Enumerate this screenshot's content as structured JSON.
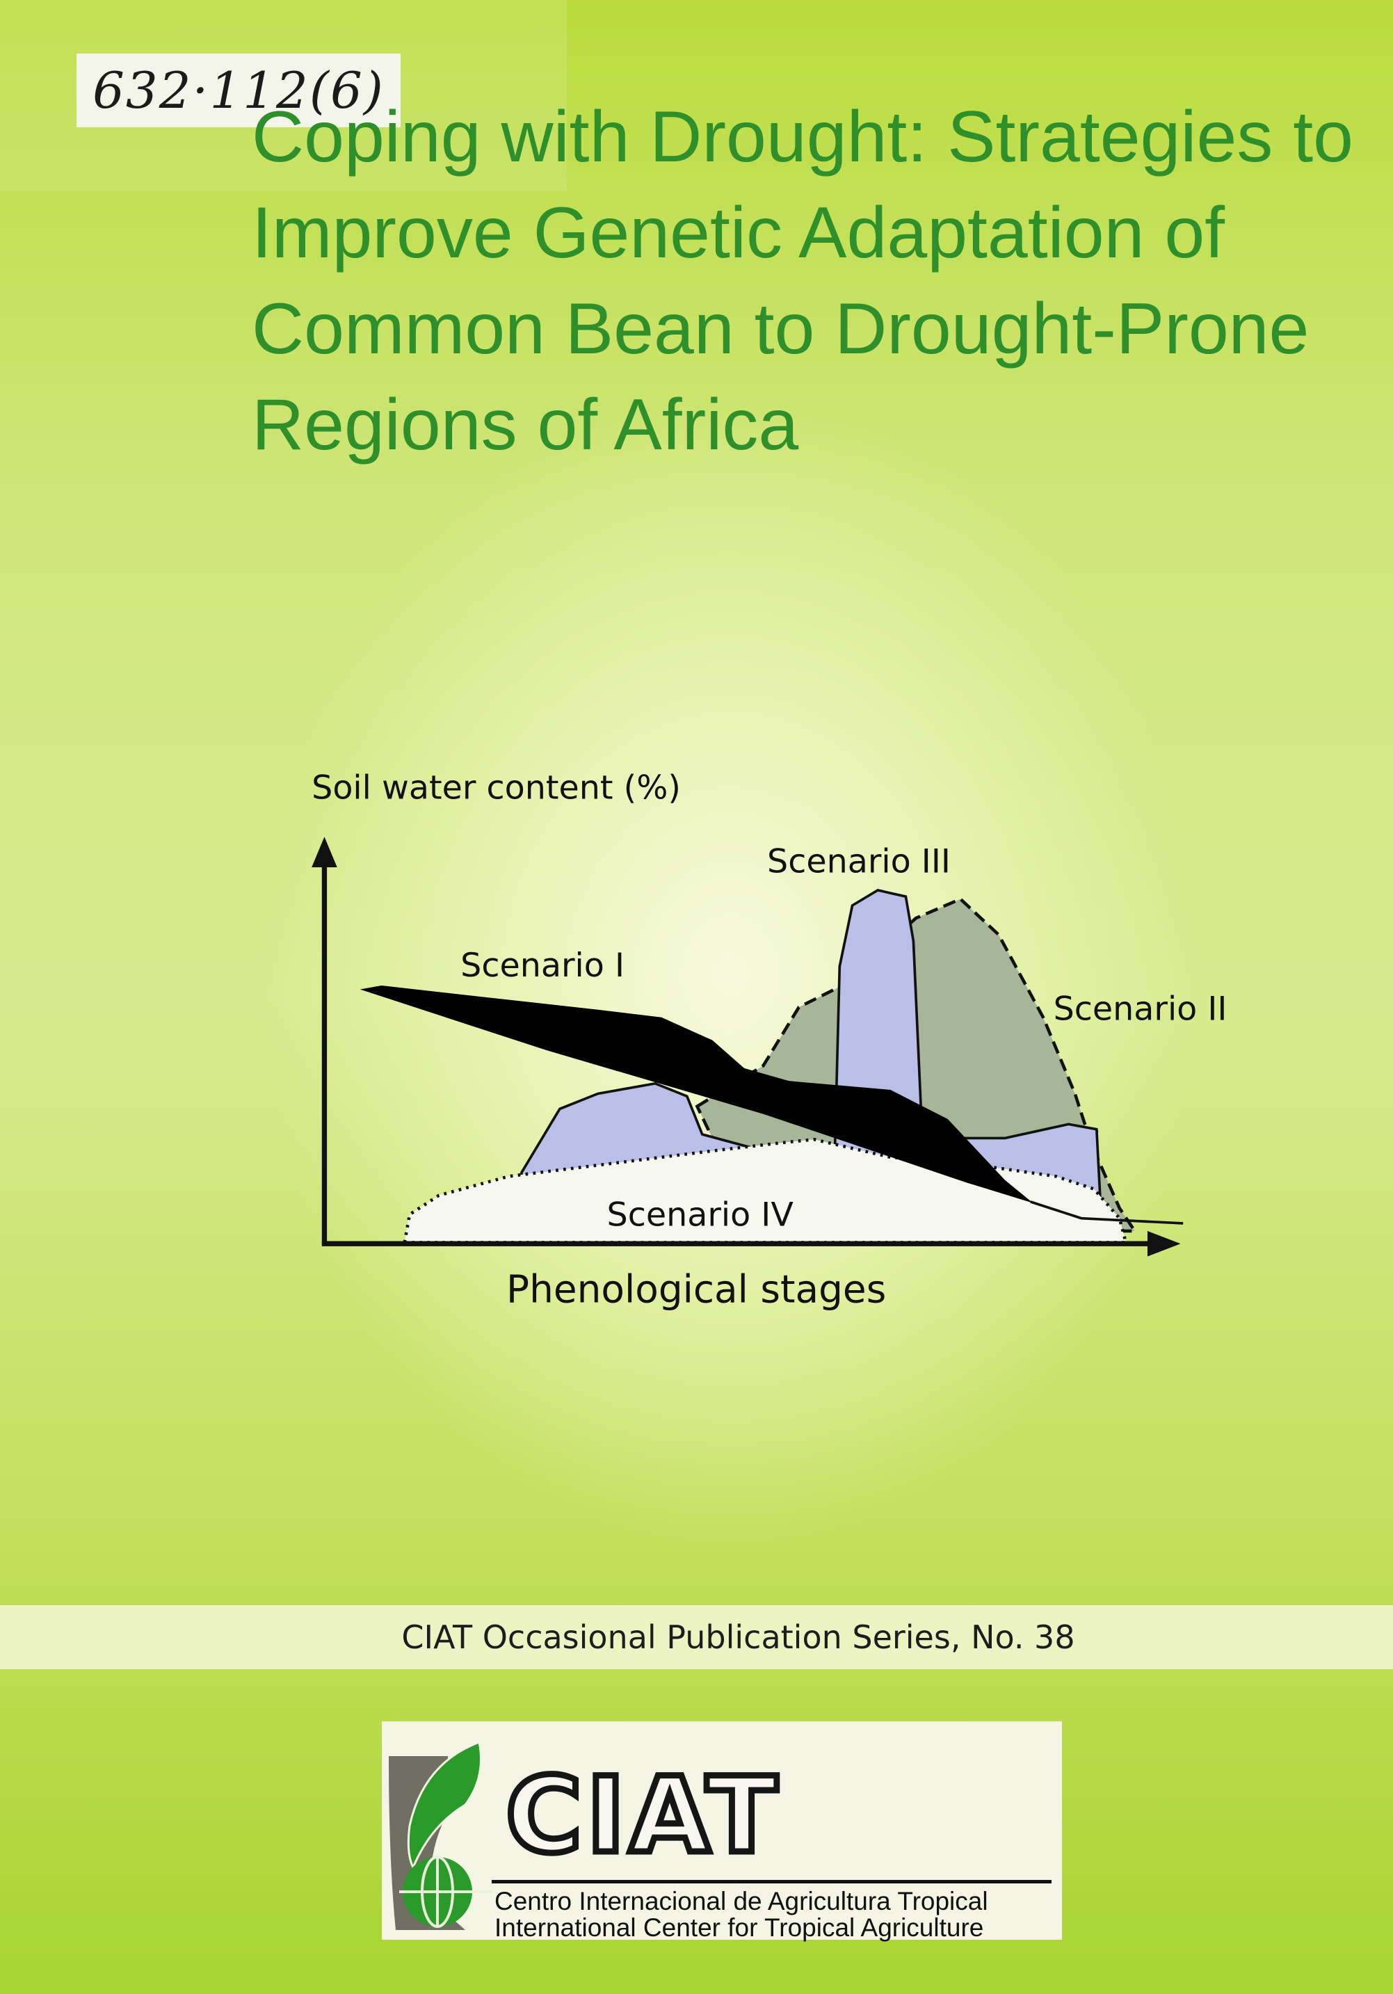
{
  "catalog_label": "632·112(6)",
  "title_lines": [
    "Coping with Drought: Strategies to",
    "Improve Genetic Adaptation of",
    "Common Bean to Drought-Prone",
    "Regions of Africa"
  ],
  "diagram": {
    "y_axis_label": "Soil water content (%)",
    "x_axis_label": "Phenological stages",
    "scenarios": {
      "s1": "Scenario I",
      "s2": "Scenario II",
      "s3": "Scenario III",
      "s4": "Scenario IV"
    },
    "colors": {
      "scenario_1": "#000000",
      "scenario_2": "#a7b598",
      "scenario_3": "#b9bfe6",
      "scenario_4": "#f6f7ee"
    }
  },
  "series_label": "CIAT Occasional Publication Series, No. 38",
  "logo": {
    "wordmark": "CIAT",
    "line_es": "Centro Internacional de Agricultura Tropical",
    "line_en": "International Center for Tropical Agriculture"
  },
  "colors": {
    "title": "#2f8f2b",
    "background": "#c4e060",
    "leaf": "#2a9a2a"
  }
}
